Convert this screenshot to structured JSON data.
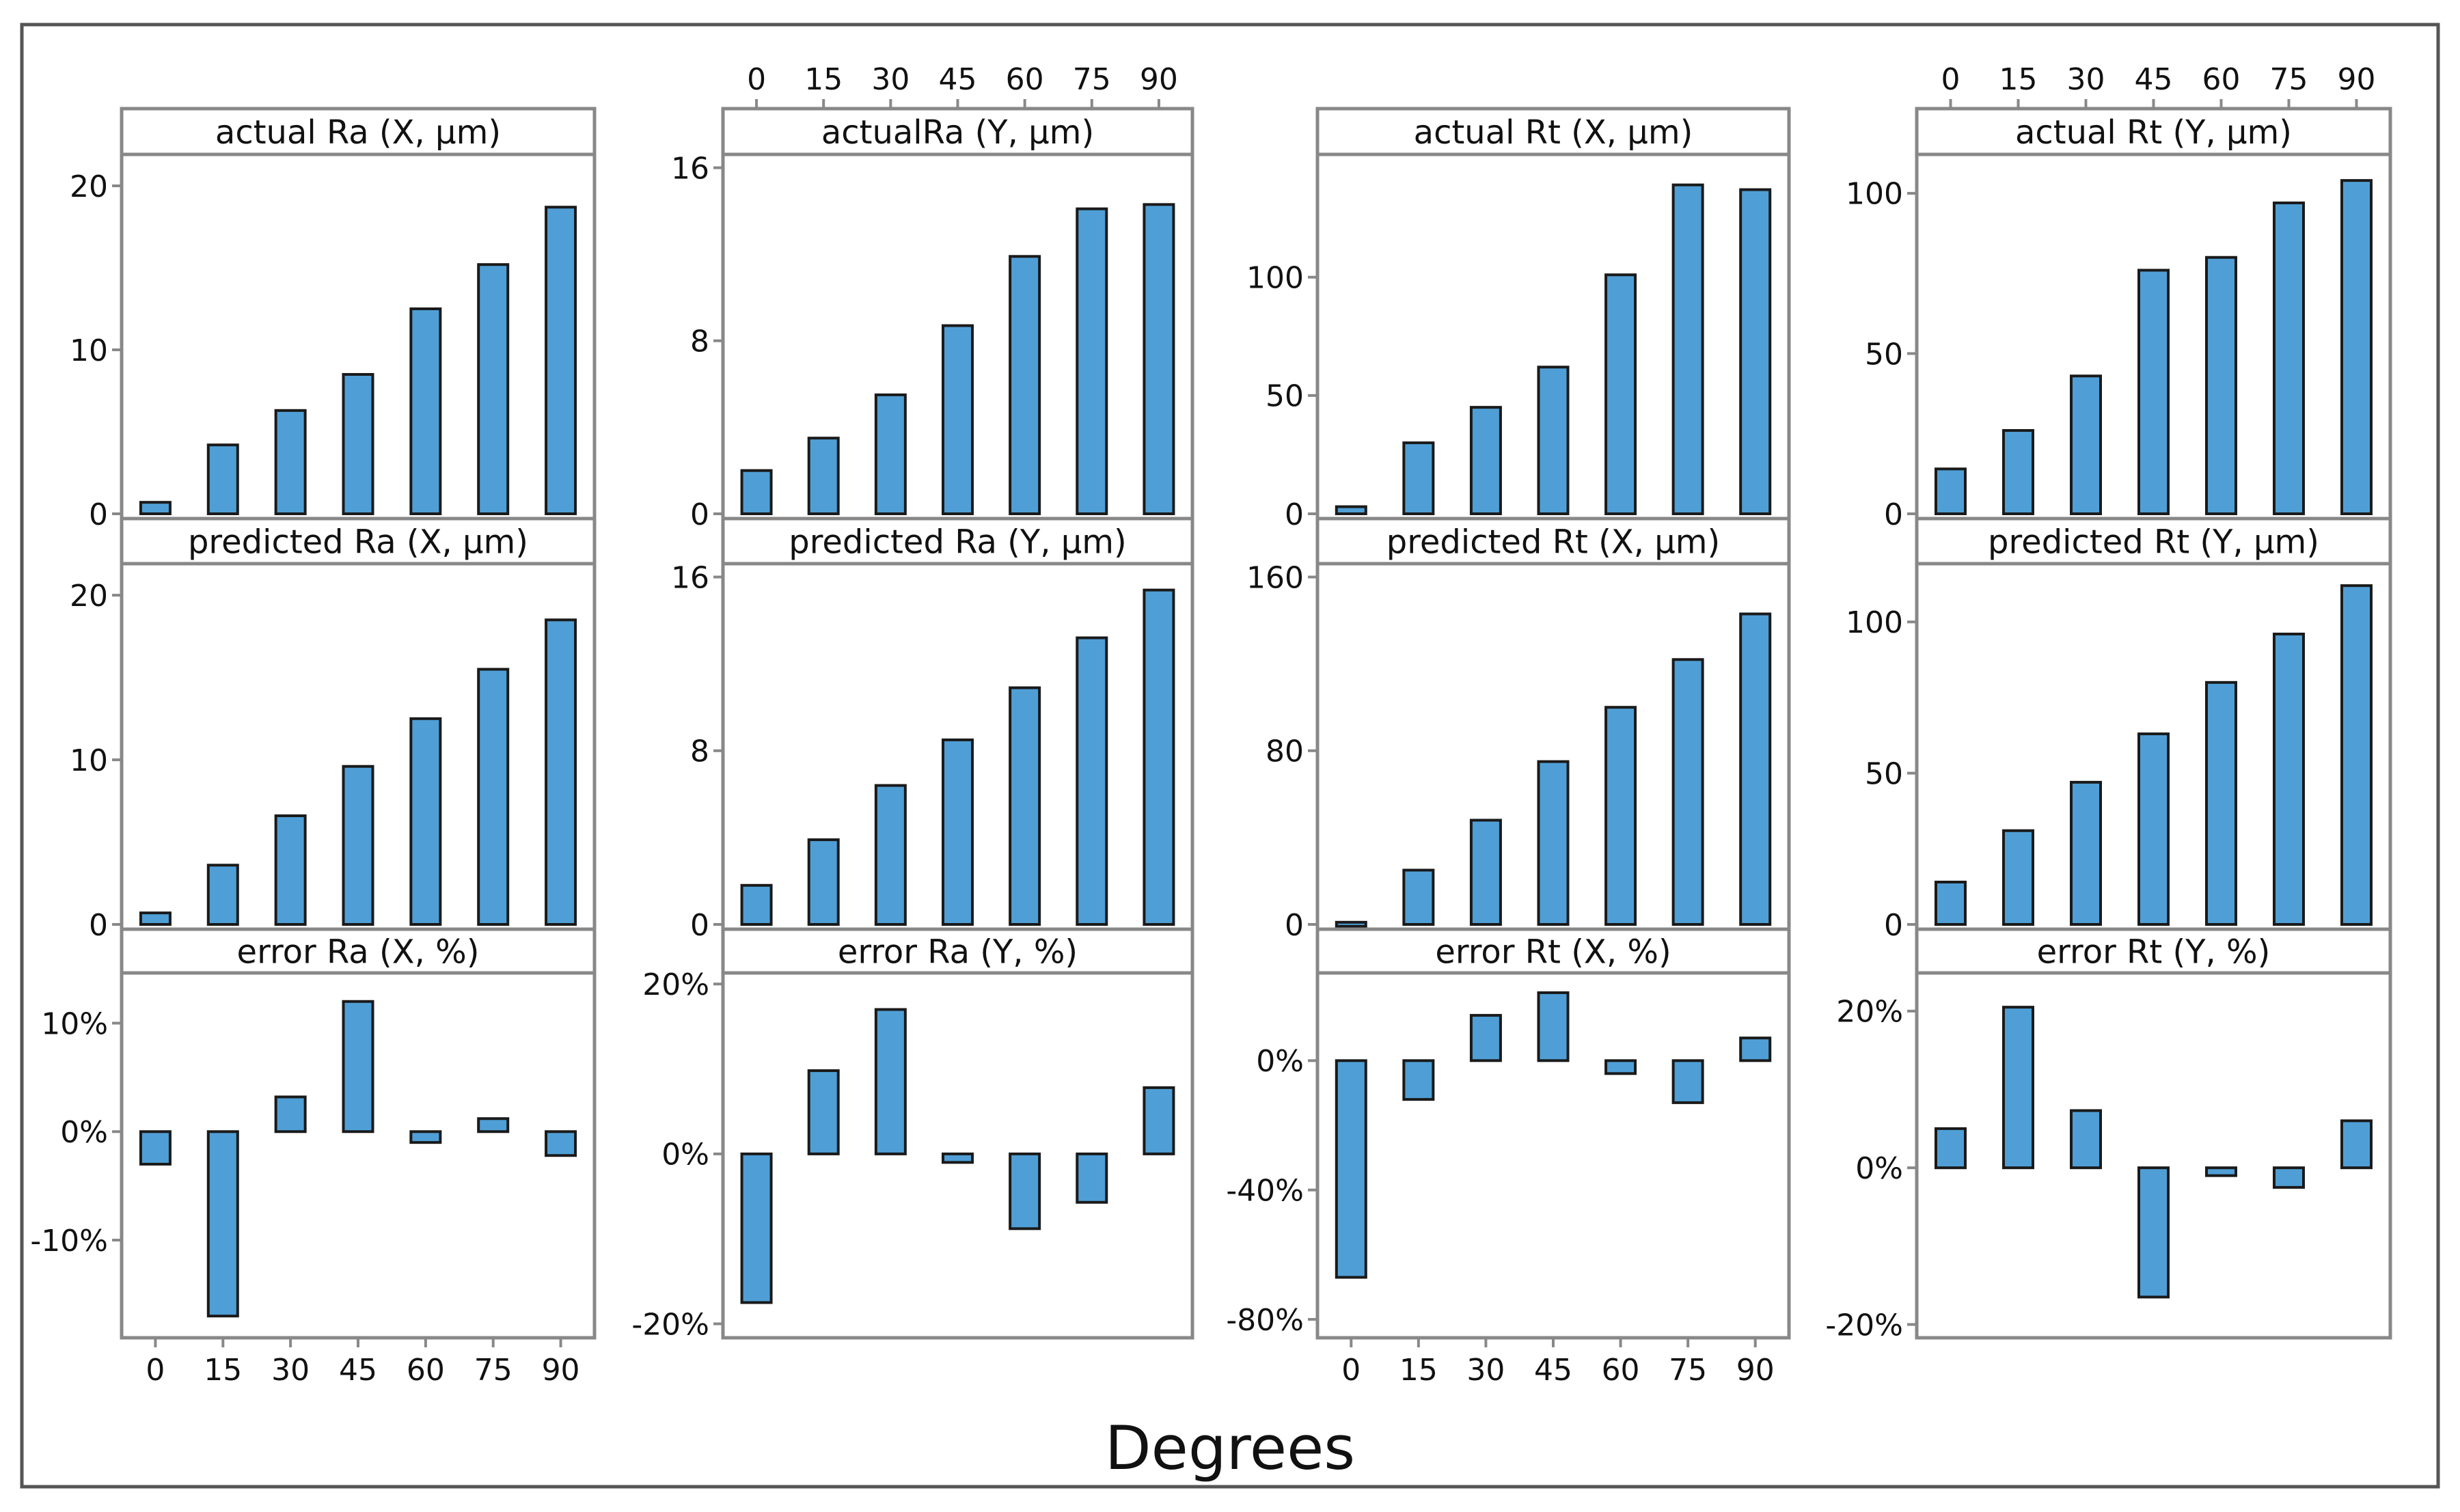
{
  "figure": {
    "xlabel": "Degrees",
    "bar_color": "#4f9fd6",
    "bar_stroke": "#1a1a1a",
    "frame_color": "#888888",
    "border_color": "#555555"
  },
  "chart_data": [
    {
      "type": "bar",
      "title": "actual Ra (X, μm)",
      "categories": [
        "0",
        "15",
        "30",
        "45",
        "60",
        "75",
        "90"
      ],
      "values": [
        0.7,
        4.2,
        6.3,
        8.5,
        12.5,
        15.2,
        18.7
      ],
      "ylim": [
        0,
        21.5
      ],
      "yticks": [
        0,
        10,
        20
      ],
      "yticklabels": [
        "0",
        "10",
        "20"
      ],
      "xlabel": "Degrees",
      "ylabel": ""
    },
    {
      "type": "bar",
      "title": "actualRa (Y, μm)",
      "categories": [
        "0",
        "15",
        "30",
        "45",
        "60",
        "75",
        "90"
      ],
      "values": [
        2.0,
        3.5,
        5.5,
        8.7,
        11.9,
        14.1,
        14.3
      ],
      "ylim": [
        0,
        16.3
      ],
      "yticks": [
        0,
        8,
        16
      ],
      "yticklabels": [
        "0",
        "8",
        "16"
      ],
      "xlabel": "Degrees",
      "ylabel": ""
    },
    {
      "type": "bar",
      "title": "actual Rt (X, μm)",
      "categories": [
        "0",
        "15",
        "30",
        "45",
        "60",
        "75",
        "90"
      ],
      "values": [
        3,
        30,
        45,
        62,
        101,
        139,
        137
      ],
      "ylim": [
        0,
        149
      ],
      "yticks": [
        0,
        50,
        100
      ],
      "yticklabels": [
        "0",
        "50",
        "100"
      ],
      "xlabel": "Degrees",
      "ylabel": ""
    },
    {
      "type": "bar",
      "title": "actual Rt (Y, μm)",
      "categories": [
        "0",
        "15",
        "30",
        "45",
        "60",
        "75",
        "90"
      ],
      "values": [
        14,
        26,
        43,
        76,
        80,
        97,
        104
      ],
      "ylim": [
        0,
        110
      ],
      "yticks": [
        0,
        50,
        100
      ],
      "yticklabels": [
        "0",
        "50",
        "100"
      ],
      "xlabel": "Degrees",
      "ylabel": ""
    },
    {
      "type": "bar",
      "title": "predicted Ra (X, μm)",
      "categories": [
        "0",
        "15",
        "30",
        "45",
        "60",
        "75",
        "90"
      ],
      "values": [
        0.7,
        3.6,
        6.6,
        9.6,
        12.5,
        15.5,
        18.5
      ],
      "ylim": [
        0,
        21.5
      ],
      "yticks": [
        0,
        10,
        20
      ],
      "yticklabels": [
        "0",
        "10",
        "20"
      ],
      "xlabel": "Degrees",
      "ylabel": ""
    },
    {
      "type": "bar",
      "title": "predicted Ra (Y, μm)",
      "categories": [
        "0",
        "15",
        "30",
        "45",
        "60",
        "75",
        "90"
      ],
      "values": [
        1.8,
        3.9,
        6.4,
        8.5,
        10.9,
        13.2,
        15.4
      ],
      "ylim": [
        0,
        16.3
      ],
      "yticks": [
        0,
        8,
        16
      ],
      "yticklabels": [
        "0",
        "8",
        "16"
      ],
      "xlabel": "Degrees",
      "ylabel": ""
    },
    {
      "type": "bar",
      "title": "predicted Rt (X, μm)",
      "categories": [
        "0",
        "15",
        "30",
        "45",
        "60",
        "75",
        "90"
      ],
      "values": [
        1,
        25,
        48,
        75,
        100,
        122,
        143
      ],
      "ylim": [
        0,
        163
      ],
      "yticks": [
        0,
        80,
        160
      ],
      "yticklabels": [
        "0",
        "80",
        "160"
      ],
      "xlabel": "Degrees",
      "ylabel": ""
    },
    {
      "type": "bar",
      "title": "predicted Rt (Y, μm)",
      "categories": [
        "0",
        "15",
        "30",
        "45",
        "60",
        "75",
        "90"
      ],
      "values": [
        14,
        31,
        47,
        63,
        80,
        96,
        112
      ],
      "ylim": [
        0,
        117
      ],
      "yticks": [
        0,
        50,
        100
      ],
      "yticklabels": [
        "0",
        "50",
        "100"
      ],
      "xlabel": "Degrees",
      "ylabel": ""
    },
    {
      "type": "bar",
      "title": "error Ra (X, %)",
      "categories": [
        "0",
        "15",
        "30",
        "45",
        "60",
        "75",
        "90"
      ],
      "values": [
        -3,
        -17,
        3.2,
        12,
        -1,
        1.2,
        -2.2
      ],
      "ylim": [
        -18.5,
        14
      ],
      "yticks": [
        10,
        0,
        -10
      ],
      "yticklabels": [
        "10%",
        "0%",
        "-10%"
      ],
      "xlabel": "Degrees",
      "ylabel": ""
    },
    {
      "type": "bar",
      "title": "error Ra (Y, %)",
      "categories": [
        "0",
        "15",
        "30",
        "45",
        "60",
        "75",
        "90"
      ],
      "values": [
        -17.5,
        9.8,
        17,
        -1,
        -8.8,
        -5.7,
        7.8
      ],
      "ylim": [
        -21,
        20.5
      ],
      "yticks": [
        20,
        0,
        -20
      ],
      "yticklabels": [
        "20%",
        "0%",
        "-20%"
      ],
      "xlabel": "Degrees",
      "ylabel": ""
    },
    {
      "type": "bar",
      "title": "error Rt (X, %)",
      "categories": [
        "0",
        "15",
        "30",
        "45",
        "60",
        "75",
        "90"
      ],
      "values": [
        -67,
        -12,
        14,
        21,
        -4,
        -13,
        7
      ],
      "ylim": [
        -84,
        25
      ],
      "yticks": [
        0,
        -40,
        -80
      ],
      "yticklabels": [
        "0%",
        "-40%",
        "-80%"
      ],
      "xlabel": "Degrees",
      "ylabel": ""
    },
    {
      "type": "bar",
      "title": "error Rt (Y, %)",
      "categories": [
        "0",
        "15",
        "30",
        "45",
        "60",
        "75",
        "90"
      ],
      "values": [
        5,
        20.5,
        7.3,
        -16.5,
        -1,
        -2.5,
        6
      ],
      "ylim": [
        -21,
        24
      ],
      "yticks": [
        20,
        0,
        -20
      ],
      "yticklabels": [
        "20%",
        "0%",
        "-20%"
      ],
      "xlabel": "Degrees",
      "ylabel": ""
    }
  ]
}
